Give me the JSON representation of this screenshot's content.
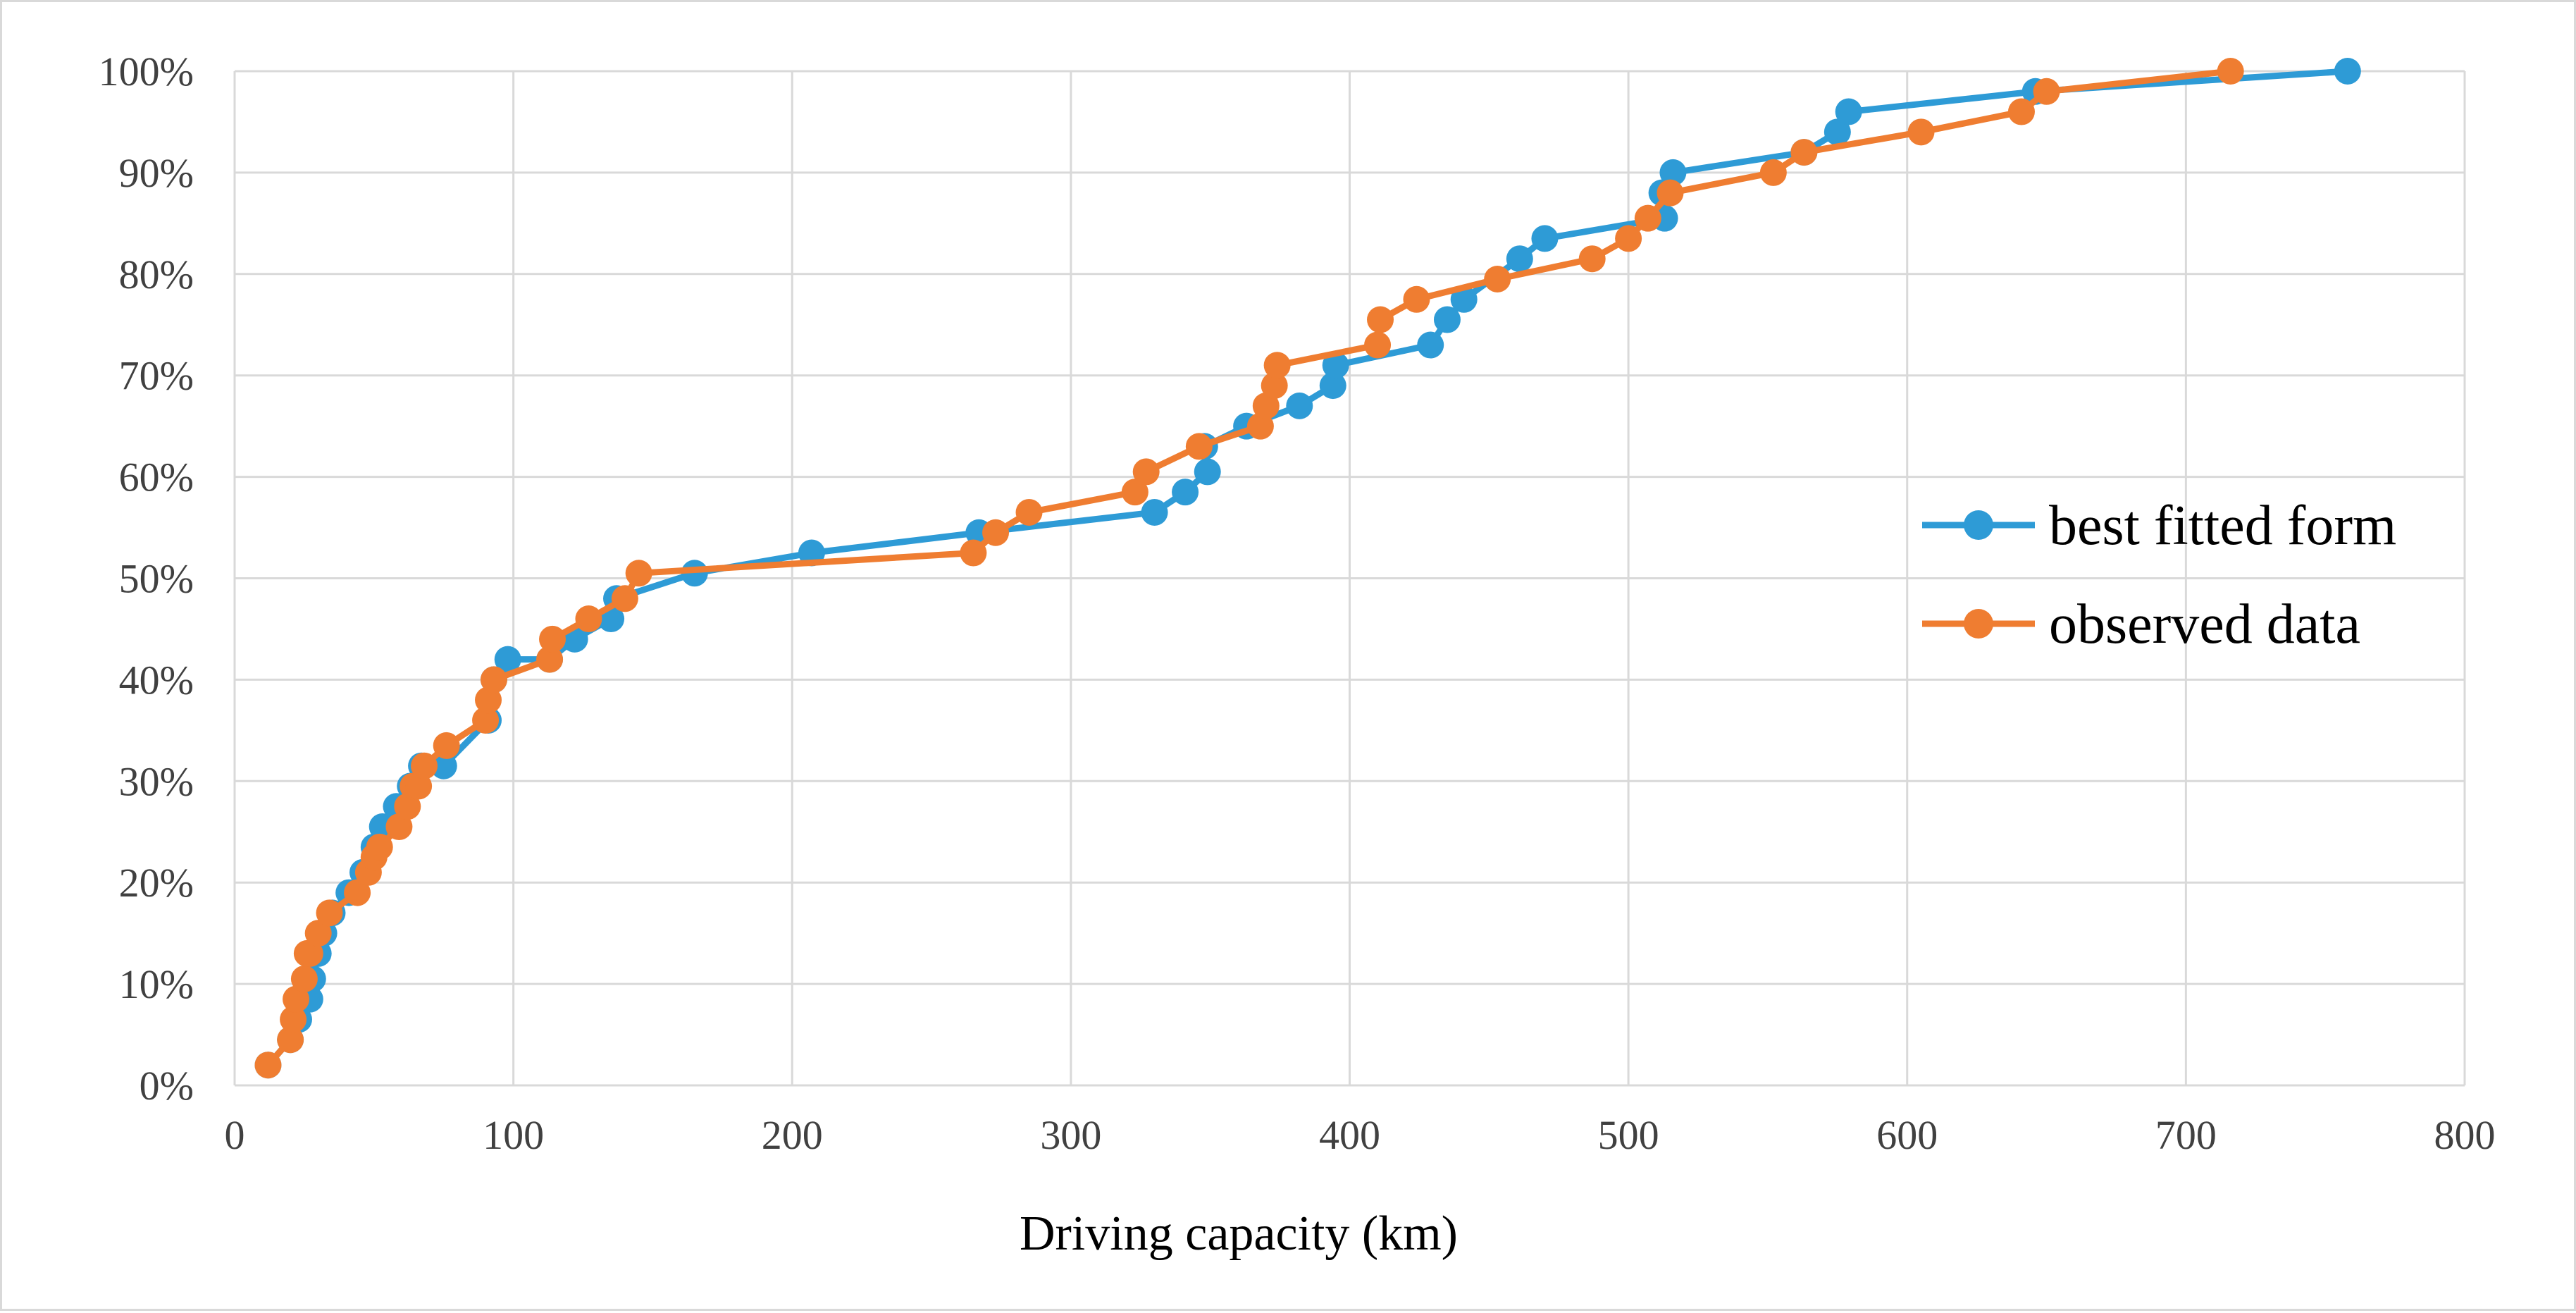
{
  "chart_data": {
    "type": "line",
    "title": "",
    "xlabel": "Driving capacity (km)",
    "ylabel": "",
    "xlim": [
      0,
      800
    ],
    "ylim": [
      0,
      100
    ],
    "x_ticks": [
      0,
      100,
      200,
      300,
      400,
      500,
      600,
      700,
      800
    ],
    "y_ticks": [
      0,
      10,
      20,
      30,
      40,
      50,
      60,
      70,
      80,
      90,
      100
    ],
    "x_tick_labels": [
      "0",
      "100",
      "200",
      "300",
      "400",
      "500",
      "600",
      "700",
      "800"
    ],
    "y_tick_labels": [
      "0%",
      "10%",
      "20%",
      "30%",
      "40%",
      "50%",
      "60%",
      "70%",
      "80%",
      "90%",
      "100%"
    ],
    "grid": true,
    "legend_position": "right",
    "series": [
      {
        "name": "best fitted form",
        "color": "#2e9bd6",
        "x": [
          12,
          20,
          23,
          27,
          28,
          30,
          32,
          35,
          41,
          46,
          50,
          53,
          58,
          63,
          67,
          75,
          91,
          93,
          98,
          113,
          122,
          135,
          137,
          165,
          207,
          267,
          330,
          341,
          349,
          348,
          363,
          382,
          394,
          395,
          429,
          435,
          441,
          461,
          470,
          513,
          512,
          516,
          563,
          575,
          579,
          646,
          758
        ],
        "y": [
          2,
          4.5,
          6.5,
          8.5,
          10.5,
          13,
          15,
          17,
          19,
          21,
          23.5,
          25.5,
          27.5,
          29.5,
          31.5,
          31.5,
          36,
          40,
          42,
          42,
          44,
          46,
          48,
          50.5,
          52.5,
          54.5,
          56.5,
          58.5,
          60.5,
          63,
          65,
          67,
          69,
          71,
          73,
          75.5,
          77.5,
          81.5,
          83.5,
          85.5,
          88,
          90,
          92,
          94,
          96,
          98,
          100
        ]
      },
      {
        "name": "observed data",
        "color": "#ef7d31",
        "x": [
          12,
          20,
          21,
          22,
          25,
          26,
          27,
          30,
          34,
          44,
          48,
          50,
          52,
          59,
          62,
          64,
          66,
          68,
          76,
          90,
          91,
          93,
          113,
          114,
          127,
          140,
          145,
          265,
          273,
          285,
          323,
          327,
          346,
          368,
          370,
          373,
          374,
          410,
          411,
          424,
          453,
          487,
          500,
          507,
          515,
          552,
          563,
          605,
          641,
          650,
          716
        ],
        "y": [
          2,
          4.5,
          6.5,
          8.5,
          10.5,
          13,
          13,
          15,
          17,
          19,
          21,
          22.5,
          23.5,
          25.5,
          27.5,
          29.5,
          29.5,
          31.5,
          33.5,
          36,
          38,
          40,
          42,
          44,
          46,
          48,
          50.5,
          52.5,
          54.5,
          56.5,
          58.5,
          60.5,
          63,
          65,
          67,
          69,
          71,
          73,
          75.5,
          77.5,
          79.5,
          81.5,
          83.5,
          85.5,
          88,
          90,
          92,
          94,
          96,
          98,
          100
        ]
      }
    ]
  }
}
